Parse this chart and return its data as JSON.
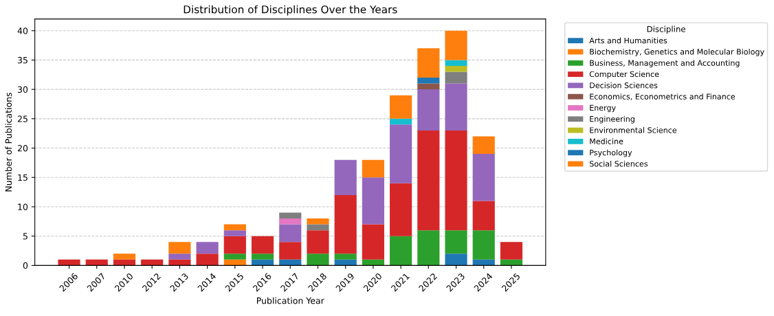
{
  "chart_data": {
    "type": "bar",
    "stacked": true,
    "title": "Distribution of Disciplines Over the Years",
    "xlabel": "Publication Year",
    "ylabel": "Number of Publications",
    "legend_title": "Discipline",
    "legend": "right",
    "grid": "y",
    "categories": [
      "2006",
      "2007",
      "2010",
      "2012",
      "2013",
      "2014",
      "2015",
      "2016",
      "2017",
      "2018",
      "2019",
      "2020",
      "2021",
      "2022",
      "2023",
      "2024",
      "2025"
    ],
    "ylim": [
      0,
      42
    ],
    "yticks": [
      0,
      5,
      10,
      15,
      20,
      25,
      30,
      35,
      40
    ],
    "series": [
      {
        "name": "Arts and Humanities",
        "color": "#1f77b4",
        "values": [
          0,
          0,
          0,
          0,
          0,
          0,
          0,
          1,
          1,
          0,
          1,
          0,
          0,
          0,
          2,
          1,
          0
        ]
      },
      {
        "name": "Biochemistry, Genetics and Molecular Biology",
        "color": "#ff7f0e",
        "values": [
          0,
          0,
          0,
          0,
          0,
          0,
          1,
          0,
          0,
          0,
          0,
          0,
          0,
          0,
          0,
          0,
          0
        ]
      },
      {
        "name": "Business, Management and Accounting",
        "color": "#2ca02c",
        "values": [
          0,
          0,
          0,
          0,
          0,
          0,
          1,
          1,
          0,
          2,
          1,
          1,
          5,
          6,
          4,
          5,
          1
        ]
      },
      {
        "name": "Computer Science",
        "color": "#d62728",
        "values": [
          1,
          1,
          1,
          1,
          1,
          2,
          3,
          3,
          3,
          4,
          10,
          6,
          9,
          17,
          17,
          5,
          3
        ]
      },
      {
        "name": "Decision Sciences",
        "color": "#9467bd",
        "values": [
          0,
          0,
          0,
          0,
          1,
          2,
          1,
          0,
          3,
          0,
          6,
          8,
          10,
          7,
          8,
          8,
          0
        ]
      },
      {
        "name": "Economics, Econometrics and Finance",
        "color": "#8c564b",
        "values": [
          0,
          0,
          0,
          0,
          0,
          0,
          0,
          0,
          0,
          0,
          0,
          0,
          0,
          1,
          0,
          0,
          0
        ]
      },
      {
        "name": "Energy",
        "color": "#e377c2",
        "values": [
          0,
          0,
          0,
          0,
          0,
          0,
          0,
          0,
          1,
          0,
          0,
          0,
          0,
          0,
          0,
          0,
          0
        ]
      },
      {
        "name": "Engineering",
        "color": "#7f7f7f",
        "values": [
          0,
          0,
          0,
          0,
          0,
          0,
          0,
          0,
          1,
          1,
          0,
          0,
          0,
          0,
          2,
          0,
          0
        ]
      },
      {
        "name": "Environmental Science",
        "color": "#bcbd22",
        "values": [
          0,
          0,
          0,
          0,
          0,
          0,
          0,
          0,
          0,
          0,
          0,
          0,
          0,
          0,
          1,
          0,
          0
        ]
      },
      {
        "name": "Medicine",
        "color": "#17becf",
        "values": [
          0,
          0,
          0,
          0,
          0,
          0,
          0,
          0,
          0,
          0,
          0,
          0,
          1,
          0,
          1,
          0,
          0
        ]
      },
      {
        "name": "Psychology",
        "color": "#1f77b4",
        "values": [
          0,
          0,
          0,
          0,
          0,
          0,
          0,
          0,
          0,
          0,
          0,
          0,
          0,
          1,
          0,
          0,
          0
        ]
      },
      {
        "name": "Social Sciences",
        "color": "#ff7f0e",
        "values": [
          0,
          0,
          1,
          0,
          2,
          0,
          1,
          0,
          0,
          1,
          0,
          3,
          4,
          5,
          5,
          3,
          0
        ]
      }
    ]
  }
}
